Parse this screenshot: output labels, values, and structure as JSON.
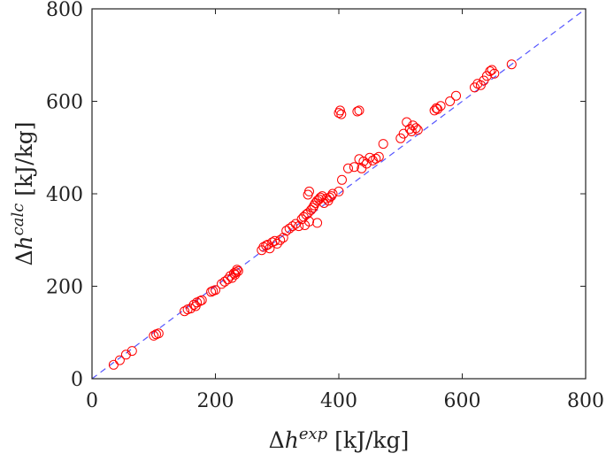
{
  "chart_data": {
    "type": "scatter",
    "title": "",
    "xlabel": {
      "prefix": "Δ",
      "var": "h",
      "sup": "exp",
      "unit": " [kJ/kg]"
    },
    "ylabel": {
      "prefix": "Δ",
      "var": "h",
      "sup": "calc",
      "unit": " [kJ/kg]"
    },
    "xlim": [
      0,
      800
    ],
    "ylim": [
      0,
      800
    ],
    "xticks": [
      0,
      200,
      400,
      600,
      800
    ],
    "yticks": [
      0,
      200,
      400,
      600,
      800
    ],
    "grid": false,
    "marker": "open-circle",
    "marker_color": "#ff0000",
    "reference_line": {
      "style": "dashed",
      "color": "#5555ff",
      "from": [
        0,
        0
      ],
      "to": [
        800,
        800
      ]
    },
    "series": [
      {
        "points": [
          [
            35,
            30
          ],
          [
            45,
            40
          ],
          [
            55,
            52
          ],
          [
            65,
            60
          ],
          [
            100,
            93
          ],
          [
            104,
            96
          ],
          [
            108,
            98
          ],
          [
            150,
            146
          ],
          [
            155,
            150
          ],
          [
            160,
            152
          ],
          [
            165,
            160
          ],
          [
            168,
            157
          ],
          [
            170,
            165
          ],
          [
            175,
            168
          ],
          [
            178,
            170
          ],
          [
            193,
            188
          ],
          [
            196,
            190
          ],
          [
            200,
            192
          ],
          [
            210,
            205
          ],
          [
            215,
            210
          ],
          [
            220,
            215
          ],
          [
            224,
            222
          ],
          [
            227,
            218
          ],
          [
            230,
            228
          ],
          [
            233,
            230
          ],
          [
            235,
            236
          ],
          [
            232,
            225
          ],
          [
            237,
            233
          ],
          [
            275,
            278
          ],
          [
            278,
            285
          ],
          [
            282,
            288
          ],
          [
            285,
            290
          ],
          [
            288,
            282
          ],
          [
            292,
            295
          ],
          [
            296,
            298
          ],
          [
            300,
            292
          ],
          [
            305,
            300
          ],
          [
            310,
            305
          ],
          [
            315,
            320
          ],
          [
            320,
            325
          ],
          [
            325,
            330
          ],
          [
            330,
            335
          ],
          [
            335,
            330
          ],
          [
            340,
            345
          ],
          [
            343,
            350
          ],
          [
            347,
            355
          ],
          [
            350,
            358
          ],
          [
            352,
            340
          ],
          [
            355,
            365
          ],
          [
            358,
            370
          ],
          [
            360,
            375
          ],
          [
            362,
            380
          ],
          [
            365,
            385
          ],
          [
            368,
            388
          ],
          [
            370,
            392
          ],
          [
            373,
            395
          ],
          [
            376,
            380
          ],
          [
            380,
            390
          ],
          [
            383,
            385
          ],
          [
            385,
            392
          ],
          [
            388,
            395
          ],
          [
            390,
            400
          ],
          [
            350,
            398
          ],
          [
            352,
            405
          ],
          [
            365,
            337
          ],
          [
            345,
            332
          ],
          [
            400,
            405
          ],
          [
            405,
            430
          ],
          [
            415,
            455
          ],
          [
            425,
            458
          ],
          [
            433,
            475
          ],
          [
            440,
            470
          ],
          [
            445,
            465
          ],
          [
            450,
            478
          ],
          [
            455,
            472
          ],
          [
            460,
            476
          ],
          [
            465,
            480
          ],
          [
            472,
            508
          ],
          [
            437,
            455
          ],
          [
            400,
            575
          ],
          [
            402,
            580
          ],
          [
            404,
            572
          ],
          [
            430,
            578
          ],
          [
            433,
            580
          ],
          [
            500,
            520
          ],
          [
            505,
            530
          ],
          [
            510,
            555
          ],
          [
            515,
            540
          ],
          [
            518,
            535
          ],
          [
            520,
            548
          ],
          [
            525,
            542
          ],
          [
            528,
            538
          ],
          [
            555,
            580
          ],
          [
            558,
            585
          ],
          [
            560,
            583
          ],
          [
            565,
            590
          ],
          [
            580,
            600
          ],
          [
            590,
            612
          ],
          [
            620,
            630
          ],
          [
            625,
            638
          ],
          [
            630,
            635
          ],
          [
            635,
            645
          ],
          [
            640,
            655
          ],
          [
            645,
            665
          ],
          [
            648,
            668
          ],
          [
            652,
            660
          ],
          [
            680,
            680
          ]
        ]
      }
    ]
  }
}
